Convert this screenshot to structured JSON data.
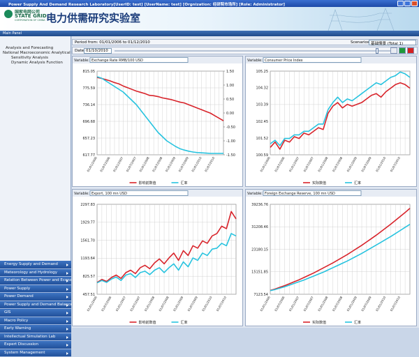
{
  "window": {
    "title": "Power Supply And Demand Research Laboratory[UserID: test] [UserName: test] [Orgnization: 经研院市场所] [Role: Administrator]"
  },
  "header": {
    "org_cn": "国家电网公司",
    "org_en": "STATE GRID",
    "org_sub": "CORPORATION OF CHINA",
    "lab": "电力供需研究实验室"
  },
  "panel_title": "Main Panel",
  "tree": [
    "Analysis and Forecasting",
    "National Macroeconomic Analytical Model",
    "Sensitivity Analysis",
    "Dynamic Analysis Function"
  ],
  "menu": [
    "Energy Supply and Demand",
    "Meteorology and Hydrology",
    "Relation Between Power and Economy",
    "Power Supply",
    "Power Demand",
    "Power Supply and Demand Balance",
    "GIS",
    "Macro Policy",
    "Early Warning",
    "Intellectual Simulation Lab",
    "Expert Discussion",
    "System Management"
  ],
  "controls": {
    "period": "Period from: 01/01/2006 to 01/12/2010",
    "scenarios_label": "Scenarios",
    "scenario": "基础情景 (Total 1)",
    "date_label": "Date",
    "date": "01/10/2010"
  },
  "chart_data": [
    {
      "type": "line",
      "label": "Variable:",
      "variable": "Exchange Rate RMB/100 USD",
      "grid": true,
      "categories": [
        "01/01/2006",
        null,
        null,
        "01/07/2006",
        null,
        null,
        "01/01/2007",
        null,
        null,
        "01/07/2007",
        null,
        null,
        "01/01/2008",
        null,
        null,
        "01/07/2008",
        null,
        null,
        "01/01/2009",
        null,
        null,
        "01/07/2009",
        null,
        null,
        "01/01/2010",
        null,
        null,
        "01/07/2010",
        null,
        null
      ],
      "ylim": [
        617.77,
        815.05
      ],
      "yticks": [
        617.77,
        657.23,
        696.68,
        736.14,
        775.59,
        815.05
      ],
      "y2lim": [
        -1.5,
        1.5
      ],
      "y2ticks": [
        {
          "value": -1.5,
          "label": "-1.50"
        },
        {
          "value": -1,
          "label": "-1.00"
        },
        {
          "value": -0.5,
          "label": "-0.50"
        },
        {
          "value": 0,
          "label": "0.00"
        },
        {
          "value": 0.5,
          "label": "0.50"
        },
        {
          "value": 1,
          "label": "1.00"
        },
        {
          "value": 1.5,
          "label": "1.50"
        }
      ],
      "series": [
        {
          "name": "影响前数值",
          "color": "#d8232a",
          "values": [
            800,
            798,
            795,
            792,
            788,
            785,
            780,
            776,
            772,
            768,
            765,
            762,
            758,
            757,
            755,
            752,
            750,
            748,
            745,
            742,
            740,
            736,
            732,
            728,
            724,
            720,
            716,
            710,
            704,
            698
          ]
        },
        {
          "name": "汇率",
          "color": "#27c3df",
          "axis": "y2",
          "values": [
            1.3,
            1.25,
            1.15,
            1.05,
            0.95,
            0.85,
            0.75,
            0.6,
            0.45,
            0.3,
            0.1,
            -0.1,
            -0.3,
            -0.5,
            -0.7,
            -0.85,
            -1,
            -1.1,
            -1.2,
            -1.28,
            -1.33,
            -1.37,
            -1.4,
            -1.42,
            -1.43,
            -1.44,
            -1.45,
            -1.45,
            -1.45,
            -1.45
          ]
        }
      ]
    },
    {
      "type": "line",
      "label": "Variable:",
      "variable": "Consumer Price Index",
      "grid": true,
      "categories": [
        "01/01/2006",
        null,
        null,
        "01/07/2006",
        null,
        null,
        "01/01/2007",
        null,
        null,
        "01/07/2007",
        null,
        null,
        "01/01/2008",
        null,
        null,
        "01/07/2008",
        null,
        null,
        "01/01/2009",
        null,
        null,
        "01/07/2009",
        null,
        null,
        "01/01/2010",
        null,
        null,
        "01/07/2010",
        null,
        null
      ],
      "ylim": [
        100.59,
        105.25
      ],
      "yticks": [
        100.59,
        101.52,
        102.45,
        103.39,
        104.32,
        105.25
      ],
      "series": [
        {
          "name": "实际数值",
          "color": "#d8232a",
          "values": [
            101.0,
            101.3,
            100.9,
            101.4,
            101.3,
            101.6,
            101.5,
            101.8,
            101.7,
            101.9,
            102.1,
            102.0,
            102.9,
            103.3,
            103.5,
            103.2,
            103.4,
            103.3,
            103.4,
            103.5,
            103.7,
            103.9,
            104.0,
            103.8,
            104.1,
            104.3,
            104.5,
            104.6,
            104.5,
            104.3
          ]
        },
        {
          "name": "汇率",
          "color": "#27c3df",
          "values": [
            101.2,
            101.4,
            101.1,
            101.5,
            101.5,
            101.7,
            101.7,
            101.9,
            101.9,
            102.1,
            102.3,
            102.3,
            103.1,
            103.5,
            103.8,
            103.5,
            103.7,
            103.6,
            103.8,
            104.0,
            104.2,
            104.4,
            104.6,
            104.5,
            104.7,
            104.9,
            105.0,
            105.2,
            105.1,
            104.9
          ]
        }
      ]
    },
    {
      "type": "line",
      "label": "Variable:",
      "variable": "Export, 100 mn USD",
      "grid": true,
      "categories": [
        "01/01/2006",
        null,
        null,
        "01/07/2006",
        null,
        null,
        "01/01/2007",
        null,
        null,
        "01/07/2007",
        null,
        null,
        "01/01/2008",
        null,
        null,
        "01/07/2008",
        null,
        null,
        "01/01/2009",
        null,
        null,
        "01/07/2009",
        null,
        null,
        "01/01/2010",
        null,
        null,
        "01/07/2010",
        null,
        null
      ],
      "ylim": [
        457.51,
        2297.83
      ],
      "yticks": [
        457.51,
        825.57,
        1193.64,
        {
          "value": 1561.7,
          "label": "1561.70"
        },
        1929.77,
        2297.83
      ],
      "series": [
        {
          "name": "影响前数值",
          "color": "#d8232a",
          "values": [
            700,
            760,
            720,
            800,
            850,
            780,
            900,
            950,
            880,
            1000,
            1050,
            980,
            1100,
            1180,
            1080,
            1200,
            1300,
            1150,
            1350,
            1250,
            1450,
            1400,
            1550,
            1500,
            1650,
            1700,
            1850,
            1800,
            2150,
            2000
          ]
        },
        {
          "name": "汇率",
          "color": "#27c3df",
          "values": [
            690,
            740,
            700,
            770,
            810,
            740,
            850,
            880,
            800,
            900,
            930,
            860,
            950,
            1000,
            900,
            1000,
            1080,
            950,
            1120,
            1020,
            1200,
            1150,
            1300,
            1250,
            1380,
            1400,
            1500,
            1450,
            1700,
            1650
          ]
        }
      ]
    },
    {
      "type": "line",
      "label": "Variable:",
      "variable": "Foreign Exchange Reserve, 100 mn USD",
      "grid": true,
      "categories": [
        "01/01/2006",
        null,
        null,
        "01/07/2006",
        null,
        null,
        "01/01/2007",
        null,
        null,
        "01/07/2007",
        null,
        null,
        "01/01/2008",
        null,
        null,
        "01/07/2008",
        null,
        null,
        "01/01/2009",
        null,
        null,
        "01/07/2009",
        null,
        null,
        "01/01/2010",
        null,
        null,
        "01/07/2010",
        null,
        null
      ],
      "ylim": [
        7123.54,
        39236.76
      ],
      "yticks": [
        7123.54,
        15151.85,
        23180.15,
        31208.46,
        39236.76
      ],
      "series": [
        {
          "name": "实际数值",
          "color": "#d8232a",
          "values": [
            8500,
            9000,
            9600,
            10200,
            10900,
            11600,
            12300,
            13100,
            13900,
            14700,
            15600,
            16500,
            17400,
            18300,
            19300,
            20300,
            21300,
            22400,
            23500,
            24600,
            25800,
            27000,
            28200,
            29500,
            30800,
            32100,
            33500,
            34900,
            36300,
            37800
          ]
        },
        {
          "name": "汇率",
          "color": "#27c3df",
          "values": [
            8400,
            8800,
            9300,
            9800,
            10400,
            11000,
            11600,
            12200,
            12900,
            13600,
            14300,
            15000,
            15800,
            16600,
            17400,
            18200,
            19000,
            19900,
            20800,
            21700,
            22700,
            23700,
            24700,
            25700,
            26700,
            27700,
            28800,
            29900,
            31000,
            32100
          ]
        }
      ]
    }
  ]
}
